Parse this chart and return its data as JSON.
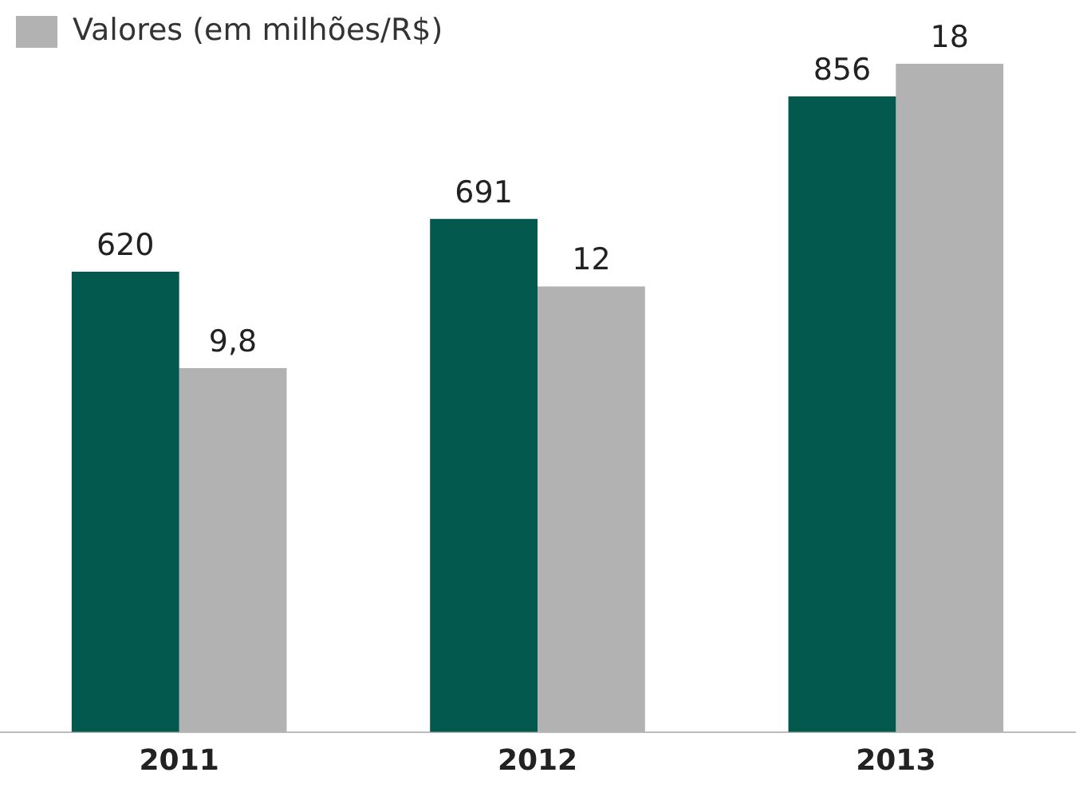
{
  "chart_data": {
    "type": "bar",
    "categories": [
      "2011",
      "2012",
      "2013"
    ],
    "series": [
      {
        "color": "#04594f",
        "values": [
          620,
          691,
          856
        ],
        "value_labels": [
          "620",
          "691",
          "856"
        ]
      },
      {
        "name": "Valores (em milhões/R$)",
        "color": "#b2b2b2",
        "values": [
          9.8,
          12,
          18
        ],
        "value_labels": [
          "9,8",
          "12",
          "18"
        ],
        "axis": "y2"
      }
    ],
    "legend": "top left",
    "grid": false,
    "tick_labels": "x"
  }
}
